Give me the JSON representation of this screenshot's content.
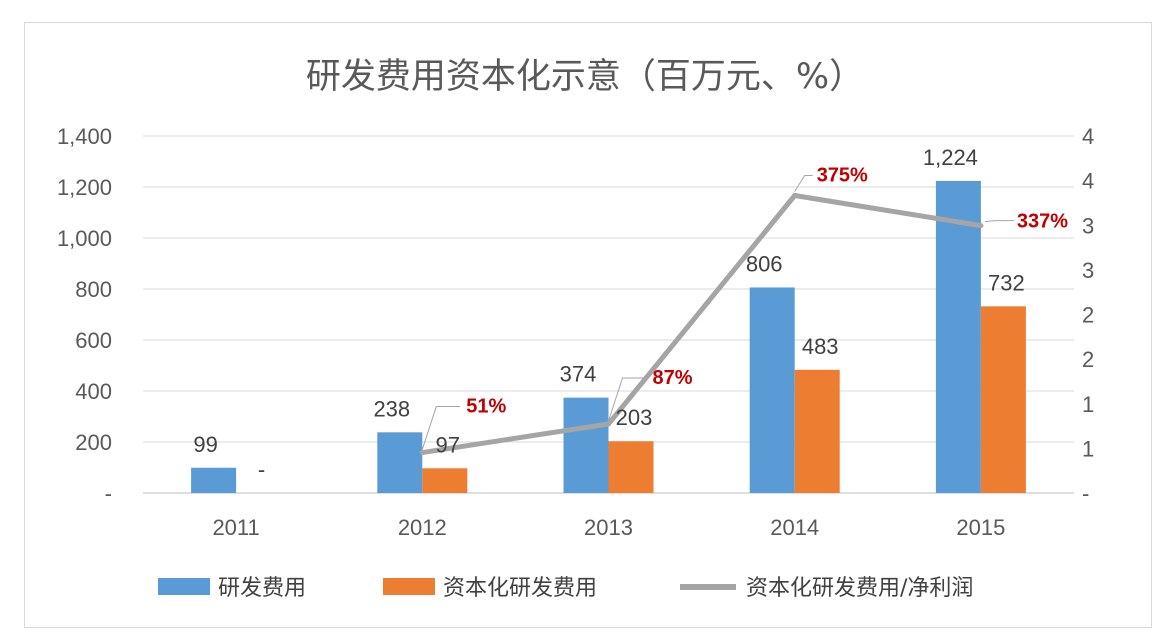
{
  "chart_data": {
    "type": "bar",
    "title": "研发费用资本化示意（百万元、%）",
    "categories": [
      "2011",
      "2012",
      "2013",
      "2014",
      "2015"
    ],
    "ylim": [
      0,
      1400
    ],
    "y_ticks": [
      0,
      200,
      400,
      600,
      800,
      1000,
      1200,
      1400
    ],
    "y_tick_labels": [
      "-",
      "200",
      "400",
      "600",
      "800",
      "1,000",
      "1,200",
      "1,400"
    ],
    "y2lim": [
      0,
      4.5
    ],
    "y2_tick_labels": [
      "-",
      "1",
      "1",
      "2",
      "2",
      "3",
      "3",
      "4",
      "4"
    ],
    "grid": true,
    "legend_position": "bottom",
    "series": [
      {
        "name": "研发费用",
        "type": "bar",
        "color": "#5b9bd5",
        "values": [
          99,
          238,
          374,
          806,
          1224
        ],
        "labels": [
          "99",
          "238",
          "374",
          "806",
          "1,224"
        ]
      },
      {
        "name": "资本化研发费用",
        "type": "bar",
        "color": "#ed7d31",
        "values": [
          0,
          97,
          203,
          483,
          732
        ],
        "labels": [
          "-",
          "97",
          "203",
          "483",
          "732"
        ]
      },
      {
        "name": "资本化研发费用/净利润",
        "type": "line",
        "axis": "secondary",
        "color": "#a5a5a5",
        "values": [
          null,
          0.51,
          0.87,
          3.75,
          3.37
        ],
        "labels": [
          "",
          "51%",
          "87%",
          "375%",
          "337%"
        ]
      }
    ]
  }
}
